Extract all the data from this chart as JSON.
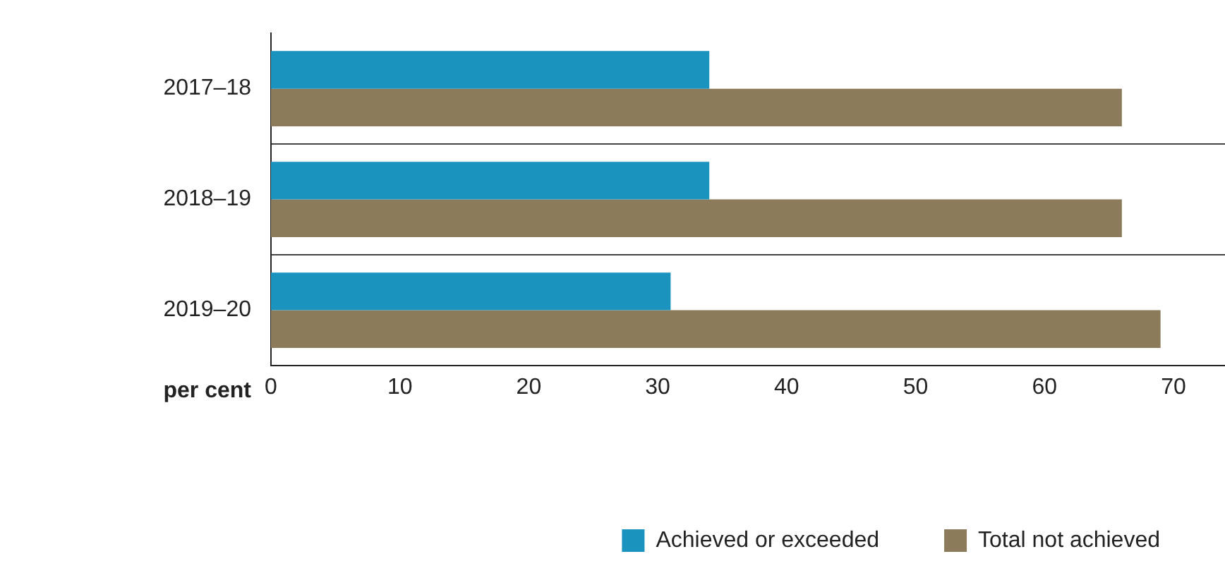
{
  "chart_data": {
    "type": "bar",
    "orientation": "horizontal",
    "xlabel": "per cent",
    "categories": [
      "2017–18",
      "2018–19",
      "2019–20"
    ],
    "series": [
      {
        "name": "Achieved or exceeded",
        "color": "#1a93bf",
        "values": [
          34,
          34,
          31
        ]
      },
      {
        "name": "Total not achieved",
        "color": "#8c7b5a",
        "values": [
          66,
          66,
          69
        ]
      }
    ],
    "xlim": [
      0,
      74
    ],
    "xticks": [
      0,
      10,
      20,
      30,
      40,
      50,
      60,
      70
    ],
    "grid": "y",
    "legend": "bottom right"
  }
}
